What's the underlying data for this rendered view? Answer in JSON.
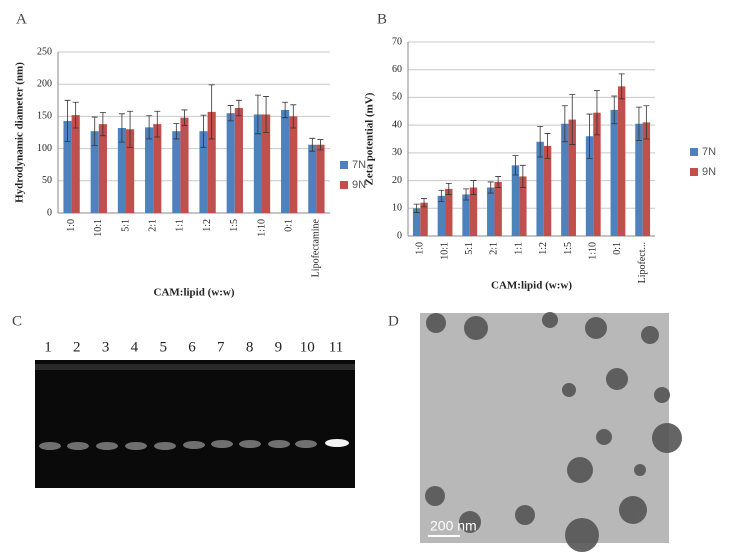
{
  "chart_data": [
    {
      "type": "bar",
      "panel_label": "A",
      "ylabel": "Hydrodynamic diameter (nm)",
      "xlabel": "CAM:lipid (w:w)",
      "categories": [
        "1:0",
        "10:1",
        "5:1",
        "2:1",
        "1:1",
        "1:2",
        "1:5",
        "1:10",
        "0:1",
        "Lipofectamine"
      ],
      "series": [
        {
          "name": "7N",
          "color": "#4f81bd",
          "values": [
            143,
            127,
            132,
            133,
            127,
            127,
            155,
            153,
            160,
            106
          ],
          "errors": [
            32,
            22,
            22,
            18,
            12,
            25,
            12,
            30,
            12,
            10
          ]
        },
        {
          "name": "9N",
          "color": "#c0504d",
          "values": [
            152,
            138,
            130,
            138,
            148,
            157,
            163,
            153,
            150,
            106
          ],
          "errors": [
            20,
            18,
            28,
            20,
            12,
            42,
            12,
            28,
            18,
            8
          ]
        }
      ],
      "ylim": [
        0,
        250
      ],
      "yticks": [
        0,
        50,
        100,
        150,
        200,
        250
      ],
      "grid": true,
      "legend": "right"
    },
    {
      "type": "bar",
      "panel_label": "B",
      "ylabel": "Zeta potential (mV)",
      "xlabel": "CAM:lipid (w:w)",
      "categories": [
        "1:0",
        "10:1",
        "5:1",
        "2:1",
        "1:1",
        "1:2",
        "1:5",
        "1:10",
        "0:1",
        "Lipofect..."
      ],
      "series": [
        {
          "name": "7N",
          "color": "#4f81bd",
          "values": [
            10,
            14.5,
            15,
            17.5,
            25.5,
            34,
            40.5,
            36,
            45.5,
            40.5
          ],
          "errors": [
            1.5,
            2,
            2,
            2,
            3.5,
            5.5,
            6.5,
            8,
            5,
            6
          ]
        },
        {
          "name": "9N",
          "color": "#c0504d",
          "values": [
            12,
            17,
            17.5,
            19.5,
            21.5,
            32.5,
            42,
            44.5,
            54,
            41
          ],
          "errors": [
            1.5,
            2,
            2.5,
            2,
            4,
            4.5,
            9,
            8,
            4.5,
            6
          ]
        }
      ],
      "ylim": [
        0,
        70
      ],
      "yticks": [
        0,
        10,
        20,
        30,
        40,
        50,
        60,
        70
      ],
      "grid": true,
      "legend": "right"
    }
  ],
  "gel": {
    "panel_label": "C",
    "lanes": [
      "1",
      "2",
      "3",
      "4",
      "5",
      "6",
      "7",
      "8",
      "9",
      "10",
      "11"
    ]
  },
  "tem": {
    "panel_label": "D",
    "scale_bar": "200 nm"
  }
}
